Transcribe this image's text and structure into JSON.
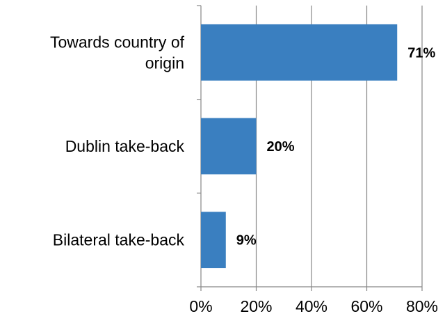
{
  "chart_data": {
    "type": "bar",
    "orientation": "horizontal",
    "categories": [
      "Towards country of\norigin",
      "Dublin take-back",
      "Bilateral  take-back"
    ],
    "values": [
      71,
      20,
      9
    ],
    "data_labels": [
      "71%",
      "20%",
      "9%"
    ],
    "x_ticks": [
      "0%",
      "20%",
      "40%",
      "60%",
      "80%"
    ],
    "xlim": [
      0,
      80
    ],
    "title": "",
    "xlabel": "",
    "ylabel": "",
    "grid": "vertical",
    "legend": "none",
    "bar_color": "#3a7fc0",
    "grid_color": "#878787"
  }
}
